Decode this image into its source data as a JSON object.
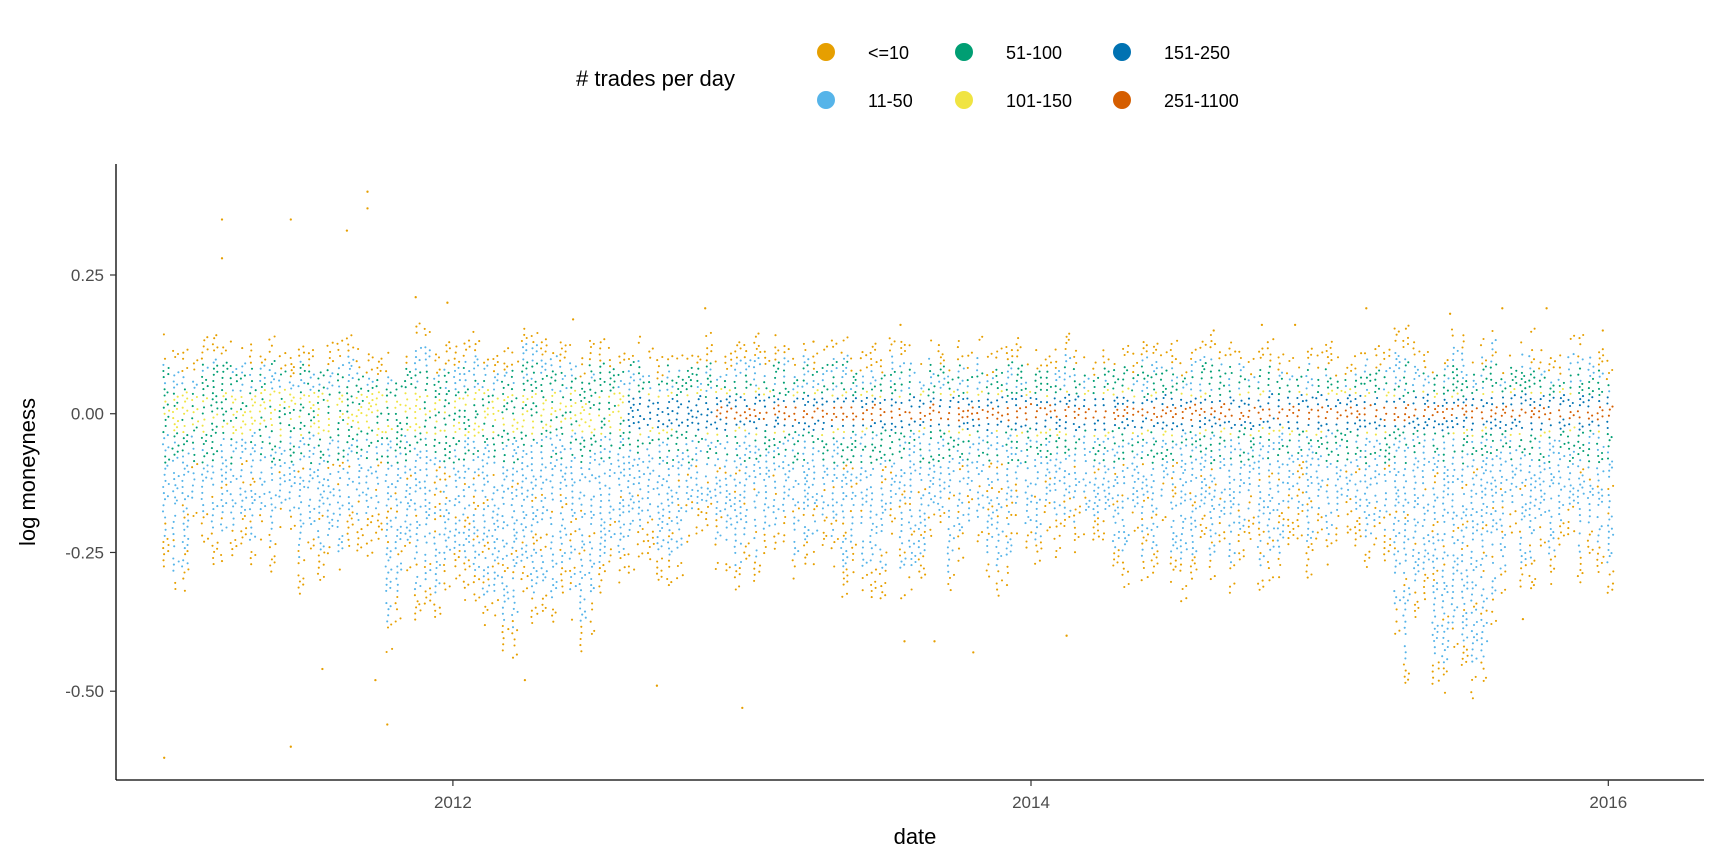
{
  "chart_data": {
    "type": "scatter",
    "title": "",
    "xlabel": "date",
    "ylabel": "log moneyness",
    "x_axis_type": "date",
    "xlim": [
      "2010-11-01",
      "2016-05-01"
    ],
    "ylim": [
      -0.66,
      0.45
    ],
    "x_ticks": [
      "2012-01-01",
      "2014-01-01",
      "2016-01-01"
    ],
    "x_tick_labels": [
      "2012",
      "2014",
      "2016"
    ],
    "y_ticks": [
      -0.5,
      -0.25,
      0,
      0.25
    ],
    "y_tick_labels": [
      "-0.50",
      "-0.25",
      "0.00",
      "0.25"
    ],
    "grid": false,
    "legend": {
      "title": "# trades per day",
      "placement": "top",
      "entries": [
        {
          "label": "<=10",
          "color": "#E69F00"
        },
        {
          "label": "11-50",
          "color": "#56B4E9"
        },
        {
          "label": "51-100",
          "color": "#009E73"
        },
        {
          "label": "101-150",
          "color": "#F0E442"
        },
        {
          "label": "151-250",
          "color": "#0072B2"
        },
        {
          "label": "251-1100",
          "color": "#D55E00"
        }
      ]
    },
    "data_range": {
      "x_start": "2011-01-01",
      "x_end": "2016-01-01"
    },
    "series": [
      {
        "name": "<=10",
        "color": "#E69F00",
        "points": [
          {
            "x": "2011-01-01",
            "y": -0.62
          },
          {
            "x": "2011-03-15",
            "y": 0.35
          },
          {
            "x": "2011-03-15",
            "y": 0.28
          },
          {
            "x": "2011-06-10",
            "y": 0.35
          },
          {
            "x": "2011-06-10",
            "y": -0.6
          },
          {
            "x": "2011-07-20",
            "y": -0.46
          },
          {
            "x": "2011-08-20",
            "y": 0.33
          },
          {
            "x": "2011-09-15",
            "y": 0.4
          },
          {
            "x": "2011-09-15",
            "y": 0.37
          },
          {
            "x": "2011-09-25",
            "y": -0.48
          },
          {
            "x": "2011-10-10",
            "y": -0.56
          },
          {
            "x": "2011-11-15",
            "y": 0.21
          },
          {
            "x": "2011-12-25",
            "y": 0.2
          },
          {
            "x": "2012-06-01",
            "y": 0.17
          },
          {
            "x": "2012-04-01",
            "y": -0.48
          },
          {
            "x": "2012-09-15",
            "y": -0.49
          },
          {
            "x": "2012-11-15",
            "y": 0.19
          },
          {
            "x": "2013-01-01",
            "y": -0.53
          },
          {
            "x": "2013-04-01",
            "y": 0.13
          },
          {
            "x": "2013-07-20",
            "y": 0.16
          },
          {
            "x": "2013-07-25",
            "y": -0.41
          },
          {
            "x": "2013-10-20",
            "y": -0.43
          },
          {
            "x": "2013-09-01",
            "y": -0.41
          },
          {
            "x": "2014-02-15",
            "y": -0.4
          },
          {
            "x": "2014-08-20",
            "y": 0.15
          },
          {
            "x": "2014-10-20",
            "y": 0.16
          },
          {
            "x": "2014-12-01",
            "y": 0.16
          },
          {
            "x": "2015-03-01",
            "y": 0.19
          },
          {
            "x": "2015-06-15",
            "y": 0.18
          },
          {
            "x": "2015-08-20",
            "y": 0.19
          },
          {
            "x": "2015-09-15",
            "y": -0.37
          },
          {
            "x": "2015-10-15",
            "y": 0.19
          },
          {
            "x": "2015-12-25",
            "y": 0.15
          }
        ]
      },
      {
        "name": "11-50",
        "color": "#56B4E9",
        "points": []
      },
      {
        "name": "51-100",
        "color": "#009E73",
        "points": []
      },
      {
        "name": "101-150",
        "color": "#F0E442",
        "points": []
      },
      {
        "name": "151-250",
        "color": "#0072B2",
        "points": []
      },
      {
        "name": "251-1100",
        "color": "#D55E00",
        "points": []
      }
    ]
  }
}
